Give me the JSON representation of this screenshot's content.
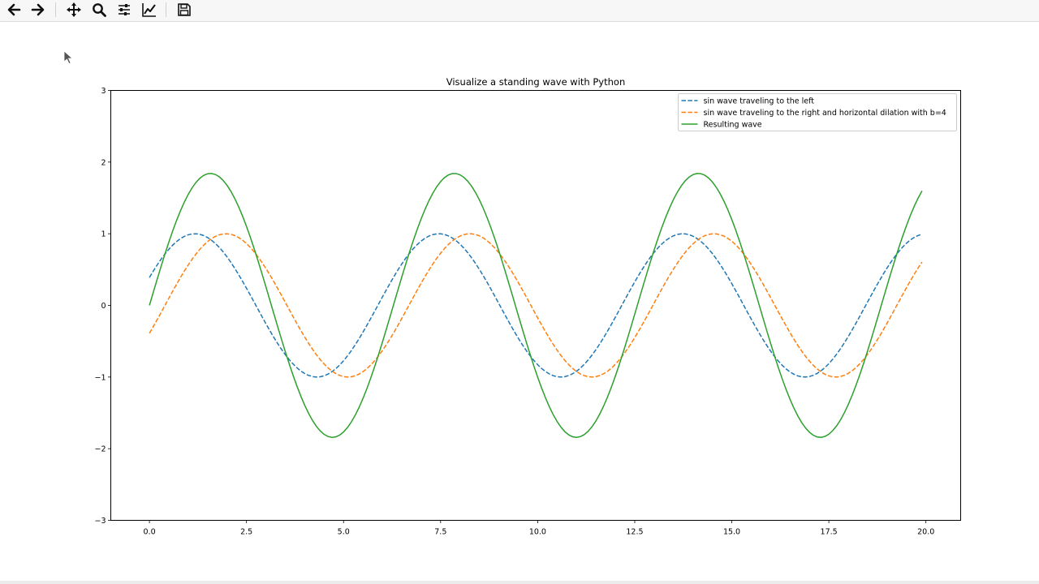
{
  "toolbar": {
    "buttons": [
      {
        "icon": "arrow-left-icon",
        "tooltip": "Back"
      },
      {
        "icon": "arrow-right-icon",
        "tooltip": "Forward"
      },
      {
        "icon": "move-icon",
        "tooltip": "Pan"
      },
      {
        "icon": "magnifier-icon",
        "tooltip": "Zoom"
      },
      {
        "icon": "sliders-icon",
        "tooltip": "Subplots"
      },
      {
        "icon": "line-chart-icon",
        "tooltip": "Customize"
      },
      {
        "icon": "floppy-disk-icon",
        "tooltip": "Save"
      }
    ]
  },
  "chart_data": {
    "type": "line",
    "title": "Visualize a standing wave with Python",
    "xlabel": "",
    "ylabel": "",
    "xlim": [
      -0.995,
      20.895
    ],
    "ylim": [
      -3,
      3
    ],
    "xticks": [
      0.0,
      2.5,
      5.0,
      7.5,
      10.0,
      12.5,
      15.0,
      17.5,
      20.0
    ],
    "xtick_labels": [
      "0.0",
      "2.5",
      "5.0",
      "7.5",
      "10.0",
      "12.5",
      "15.0",
      "17.5",
      "20.0"
    ],
    "yticks": [
      -3,
      -2,
      -1,
      0,
      1,
      2,
      3
    ],
    "ytick_labels": [
      "−3",
      "−2",
      "−1",
      "0",
      "1",
      "2",
      "3"
    ],
    "grid": false,
    "legend_position": "top-right",
    "x": {
      "start": 0.0,
      "stop": 19.9,
      "step": 0.1
    },
    "series": [
      {
        "name": "sin wave traveling to the left",
        "function": "sin(x + 0.4)",
        "color": "#1f77b4",
        "linestyle": "dashed"
      },
      {
        "name": "sin wave traveling to the right and horizontal dilation with b=4",
        "function": "sin(x - 0.4)",
        "color": "#ff7f0e",
        "linestyle": "dashed"
      },
      {
        "name": "Resulting wave",
        "function": "sin(x + 0.4) + sin(x - 0.4)",
        "color": "#2ca02c",
        "linestyle": "solid"
      }
    ]
  }
}
